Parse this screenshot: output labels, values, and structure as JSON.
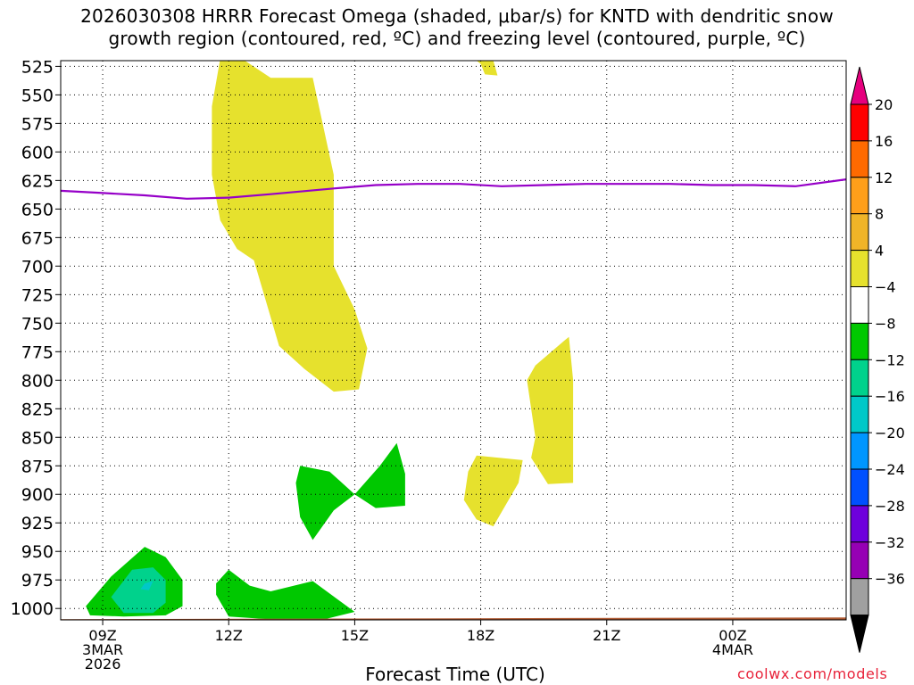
{
  "title": {
    "line1": "2026030308 HRRR Forecast Omega (shaded, μbar/s) for KNTD with dendritic snow",
    "line2": "growth region (contoured, red, ºC) and freezing level (contoured, purple, ºC)"
  },
  "credit": "coolwx.com/models",
  "chart_data": {
    "type": "heatmap",
    "title": "2026030308 HRRR Forecast Omega (shaded, μbar/s) for KNTD with dendritic snow growth region (contoured, red, ºC) and freezing level (contoured, purple, ºC)",
    "xlabel": "Forecast Time (UTC)",
    "ylabel": "",
    "x_range_hours_utc": [
      8,
      26.7
    ],
    "y_range_hpa": [
      1010,
      520
    ],
    "x_ticks": [
      {
        "hour": 9,
        "lines": [
          "09Z",
          "3MAR",
          "2026"
        ]
      },
      {
        "hour": 12,
        "lines": [
          "12Z"
        ]
      },
      {
        "hour": 15,
        "lines": [
          "15Z"
        ]
      },
      {
        "hour": 18,
        "lines": [
          "18Z"
        ]
      },
      {
        "hour": 21,
        "lines": [
          "21Z"
        ]
      },
      {
        "hour": 24,
        "lines": [
          "00Z",
          "4MAR"
        ]
      }
    ],
    "y_ticks": [
      525,
      550,
      575,
      600,
      625,
      650,
      675,
      700,
      725,
      750,
      775,
      800,
      825,
      850,
      875,
      900,
      925,
      950,
      975,
      1000
    ],
    "grid": true,
    "colorbar": {
      "levels": [
        20,
        16,
        12,
        8,
        4,
        -4,
        -8,
        -12,
        -16,
        -20,
        -24,
        -28,
        -32,
        -36
      ],
      "colors": [
        "#ff0000",
        "#ff6a00",
        "#ff9f1a",
        "#f0b428",
        "#e6e12d",
        "#ffffff",
        "#00c800",
        "#00d28c",
        "#00c8c8",
        "#0096ff",
        "#0050ff",
        "#6e00dc",
        "#9600b4",
        "#a0a0a0"
      ],
      "top_arrow_color": "#e6007e",
      "bottom_arrow_color": "#000000"
    },
    "freezing_level": {
      "name": "",
      "color": "#9600c8",
      "x": [
        8.0,
        9.0,
        10.0,
        11.0,
        12.0,
        13.0,
        14.5,
        15.5,
        16.5,
        17.5,
        18.5,
        19.5,
        20.5,
        21.5,
        22.5,
        23.5,
        24.5,
        25.5,
        26.7
      ],
      "y": [
        634,
        636,
        638,
        641,
        640,
        637,
        632,
        629,
        628,
        628,
        630,
        629,
        628,
        628,
        628,
        629,
        629,
        630,
        624
      ]
    },
    "omega_regions": [
      {
        "value": 4,
        "color": "#e6e12d",
        "points": [
          [
            11.8,
            518
          ],
          [
            12.3,
            518
          ],
          [
            13.0,
            535
          ],
          [
            14.0,
            535
          ],
          [
            14.5,
            620
          ],
          [
            14.5,
            700
          ],
          [
            15.0,
            738
          ],
          [
            15.3,
            772
          ],
          [
            15.1,
            808
          ],
          [
            14.5,
            810
          ],
          [
            13.8,
            790
          ],
          [
            13.2,
            770
          ],
          [
            12.8,
            720
          ],
          [
            12.6,
            695
          ],
          [
            12.2,
            685
          ],
          [
            11.8,
            660
          ],
          [
            11.6,
            620
          ],
          [
            11.6,
            560
          ]
        ]
      },
      {
        "value": 4,
        "color": "#e6e12d",
        "points": [
          [
            17.9,
            520
          ],
          [
            18.3,
            520
          ],
          [
            18.4,
            533
          ],
          [
            18.1,
            532
          ],
          [
            18.0,
            523
          ]
        ]
      },
      {
        "value": 4,
        "color": "#e6e12d",
        "points": [
          [
            19.3,
            787
          ],
          [
            20.0,
            765
          ],
          [
            20.1,
            762
          ],
          [
            20.2,
            800
          ],
          [
            20.2,
            890
          ],
          [
            19.6,
            891
          ],
          [
            19.2,
            868
          ],
          [
            19.3,
            850
          ],
          [
            19.1,
            800
          ]
        ]
      },
      {
        "value": 4,
        "color": "#e6e12d",
        "points": [
          [
            17.7,
            880
          ],
          [
            17.9,
            866
          ],
          [
            19.0,
            870
          ],
          [
            18.9,
            890
          ],
          [
            18.3,
            928
          ],
          [
            17.9,
            922
          ],
          [
            17.6,
            905
          ]
        ]
      },
      {
        "value": -4,
        "color": "#00c800",
        "points": [
          [
            13.7,
            875
          ],
          [
            14.4,
            880
          ],
          [
            15.0,
            900
          ],
          [
            14.5,
            914
          ],
          [
            14.0,
            940
          ],
          [
            13.7,
            920
          ],
          [
            13.6,
            890
          ]
        ]
      },
      {
        "value": -4,
        "color": "#00c800",
        "points": [
          [
            15.0,
            900
          ],
          [
            15.6,
            875
          ],
          [
            16.0,
            855
          ],
          [
            16.2,
            882
          ],
          [
            16.2,
            910
          ],
          [
            15.5,
            912
          ]
        ]
      },
      {
        "value": -4,
        "color": "#00c800",
        "points": [
          [
            12.0,
            966
          ],
          [
            12.5,
            980
          ],
          [
            13.0,
            985
          ],
          [
            14.0,
            976
          ],
          [
            15.0,
            1003
          ],
          [
            14.0,
            1012
          ],
          [
            12.0,
            1007
          ],
          [
            11.7,
            988
          ],
          [
            11.7,
            978
          ]
        ]
      },
      {
        "value": -4,
        "color": "#00c800",
        "points": [
          [
            8.6,
            998
          ],
          [
            9.2,
            972
          ],
          [
            10.0,
            946
          ],
          [
            10.5,
            955
          ],
          [
            10.9,
            975
          ],
          [
            10.9,
            998
          ],
          [
            10.5,
            1006
          ],
          [
            9.5,
            1007
          ],
          [
            8.7,
            1006
          ]
        ]
      },
      {
        "value": -8,
        "color": "#00d28c",
        "points": [
          [
            9.2,
            990
          ],
          [
            9.7,
            966
          ],
          [
            10.2,
            964
          ],
          [
            10.5,
            975
          ],
          [
            10.5,
            995
          ],
          [
            10.2,
            1004
          ],
          [
            9.5,
            1004
          ]
        ]
      },
      {
        "value": -12,
        "color": "#00c8c8",
        "points": [
          [
            10.0,
            978
          ],
          [
            10.2,
            976
          ],
          [
            10.1,
            984
          ],
          [
            9.9,
            983
          ]
        ]
      }
    ],
    "terrain_color": "#b05a32"
  }
}
